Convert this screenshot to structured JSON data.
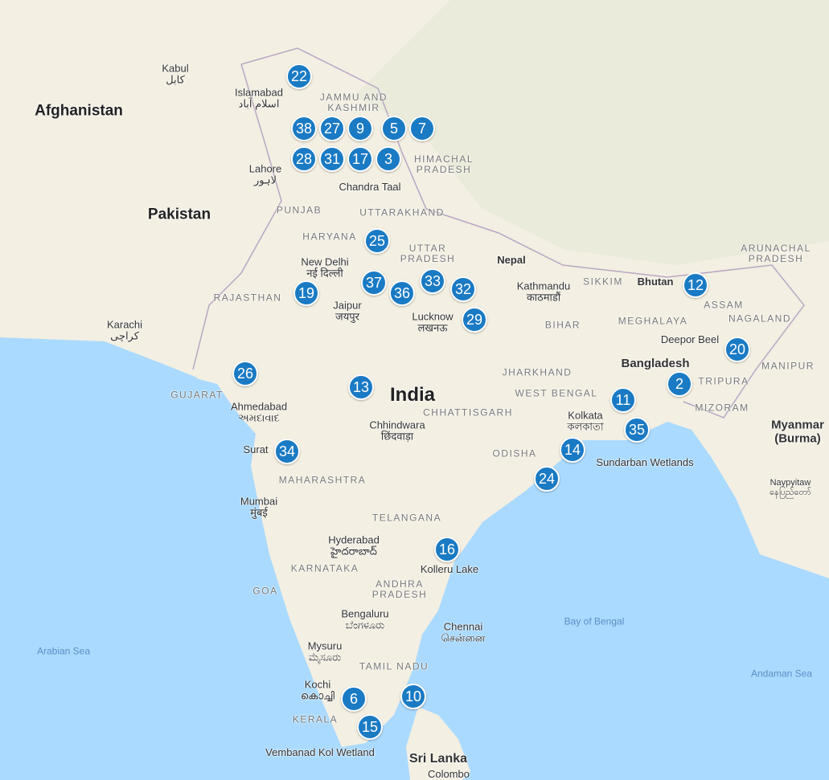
{
  "colors": {
    "land": "#f3efe3",
    "water": "#aadaff",
    "marker": "#1a7ac4"
  },
  "countries": [
    "Afghanistan",
    "Pakistan",
    "India",
    "Nepal",
    "Bhutan",
    "Bangladesh",
    "Myanmar (Burma)",
    "Sri Lanka"
  ],
  "states": [
    "JAMMU AND KASHMIR",
    "PUNJAB",
    "HARYANA",
    "UTTARAKHAND",
    "UTTAR PRADESH",
    "RAJASTHAN",
    "GUJARAT",
    "MAHARASHTRA",
    "TELANGANA",
    "ANDHRA PRADESH",
    "KARNATAKA",
    "GOA",
    "TAMIL NADU",
    "KERALA",
    "ODISHA",
    "CHHATTISGARH",
    "JHARKHAND",
    "BIHAR",
    "WEST BENGAL",
    "SIKKIM",
    "ASSAM",
    "MEGHALAYA",
    "NAGALAND",
    "ARUNACHAL PRADESH",
    "MANIPUR",
    "TRIPURA",
    "MIZORAM",
    "HIMACHAL PRADESH"
  ],
  "cities": [
    "Kabul\nکابل",
    "Islamabad\nاسلام آباد",
    "Lahore\nلاہور",
    "Karachi\nکراچی",
    "New Delhi\nनई दिल्ली",
    "Jaipur\nजयपुर",
    "Lucknow\nलखनऊ",
    "Kathmandu\nकाठमाडौं",
    "Ahmedabad\nઅમદાવાદ",
    "Surat",
    "Mumbai\nमुंबई",
    "Hyderabad\nహైదరాబాద్",
    "Bengaluru\nಬೆಂಗಳೂರು",
    "Chennai\nசென்னை",
    "Mysuru\nಮೈಸೂರು",
    "Kochi\nകൊച്ചി",
    "Chhindwara\nछिंदवाड़ा",
    "Kolkata\nকলকাতা",
    "Naypyitaw\nနေပြည်တော်",
    "Colombo"
  ],
  "places": [
    "Chandra Taal",
    "Deepor Beel",
    "Sundarban Wetlands",
    "Kolleru Lake",
    "Vembanad Kol Wetland"
  ],
  "seas": [
    "Arabian Sea",
    "Bay of Bengal",
    "Andaman Sea"
  ],
  "markers": [
    "22",
    "38",
    "27",
    "9",
    "28",
    "31",
    "17",
    "3",
    "5",
    "7",
    "25",
    "19",
    "37",
    "36",
    "33",
    "32",
    "29",
    "13",
    "26",
    "34",
    "16",
    "24",
    "14",
    "11",
    "35",
    "12",
    "2",
    "20",
    "10",
    "6",
    "15"
  ]
}
